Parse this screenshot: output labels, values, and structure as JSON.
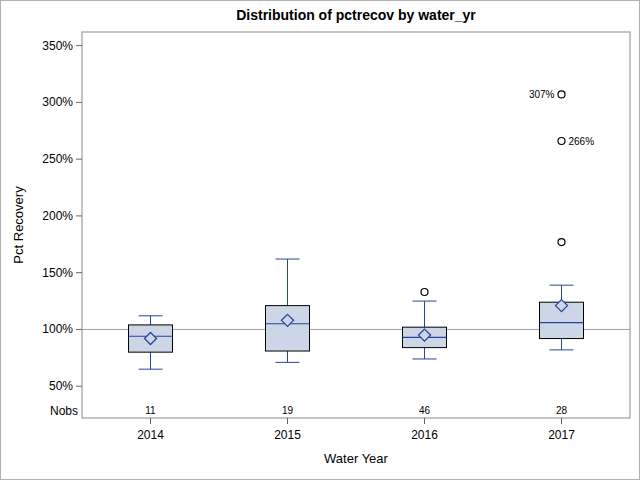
{
  "chart_data": {
    "type": "box",
    "title": "Distribution of pctrecov by water_yr",
    "x_label": "Water Year",
    "y_label": "Pct Recovery",
    "categories": [
      "2014",
      "2015",
      "2016",
      "2017"
    ],
    "whisker_low": [
      65,
      71,
      74,
      82
    ],
    "q1": [
      80,
      81,
      84,
      92
    ],
    "median": [
      94,
      105,
      93,
      106
    ],
    "q3": [
      104,
      121,
      102,
      124
    ],
    "whisker_high": [
      112,
      162,
      125,
      139
    ],
    "mean": [
      92,
      108,
      95,
      121
    ],
    "outliers": [
      [],
      [],
      [
        133
      ],
      [
        177,
        266,
        307
      ]
    ],
    "outlier_labels": [
      [],
      [],
      [
        null
      ],
      [
        null,
        "266%",
        "307%"
      ]
    ],
    "nobs_label": "Nobs",
    "nobs": [
      11,
      19,
      46,
      28
    ],
    "reference_line": 100,
    "color": "#ccd6e6",
    "grid": false,
    "ylim": [
      22,
      362
    ],
    "yticks": [
      {
        "value": 50,
        "label": "50%"
      },
      {
        "value": 100,
        "label": "100%"
      },
      {
        "value": 150,
        "label": "150%"
      },
      {
        "value": 200,
        "label": "200%"
      },
      {
        "value": 250,
        "label": "250%"
      },
      {
        "value": 300,
        "label": "300%"
      },
      {
        "value": 350,
        "label": "350%"
      }
    ]
  }
}
